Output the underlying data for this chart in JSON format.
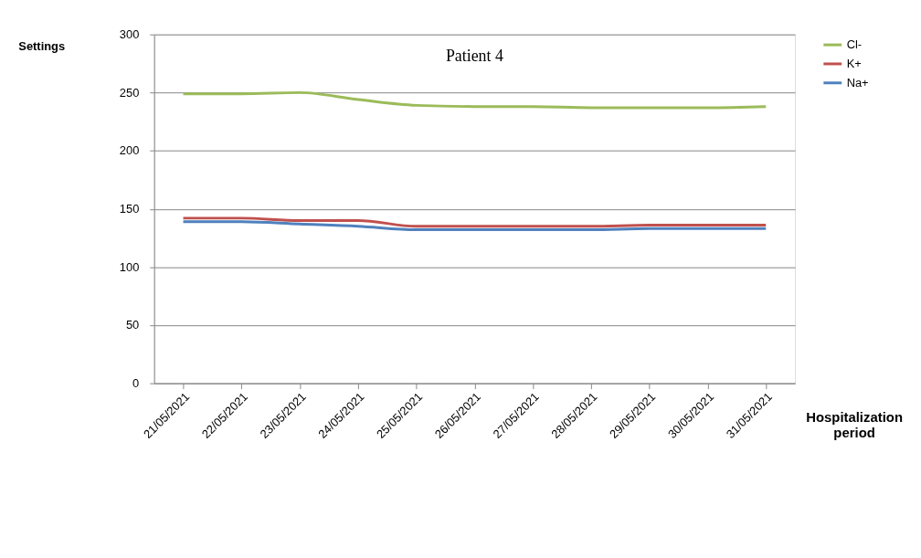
{
  "chart_data": {
    "type": "line",
    "title": "Patient 4",
    "xlabel": "Hospitalization period",
    "ylabel": "Settings",
    "categories": [
      "21/05/2021",
      "22/05/2021",
      "23/05/2021",
      "24/05/2021",
      "25/05/2021",
      "26/05/2021",
      "27/05/2021",
      "28/05/2021",
      "29/05/2021",
      "30/05/2021",
      "31/05/2021"
    ],
    "series": [
      {
        "name": "Cl-",
        "color": "#9bbb59",
        "values": [
          249,
          249,
          250,
          244,
          239,
          238,
          238,
          237,
          237,
          237,
          238
        ]
      },
      {
        "name": "K+",
        "color": "#c0504d",
        "values": [
          142,
          142,
          140,
          140,
          135,
          135,
          135,
          135,
          136,
          136,
          136
        ]
      },
      {
        "name": "Na+",
        "color": "#4f81bd",
        "values": [
          139,
          139,
          137,
          135,
          132,
          132,
          132,
          132,
          133,
          133,
          133
        ]
      }
    ],
    "ylim": [
      0,
      300
    ],
    "yticks": [
      0,
      50,
      100,
      150,
      200,
      250,
      300
    ],
    "grid": "y",
    "legend": "right",
    "marker": "none",
    "line_style": "solid"
  }
}
